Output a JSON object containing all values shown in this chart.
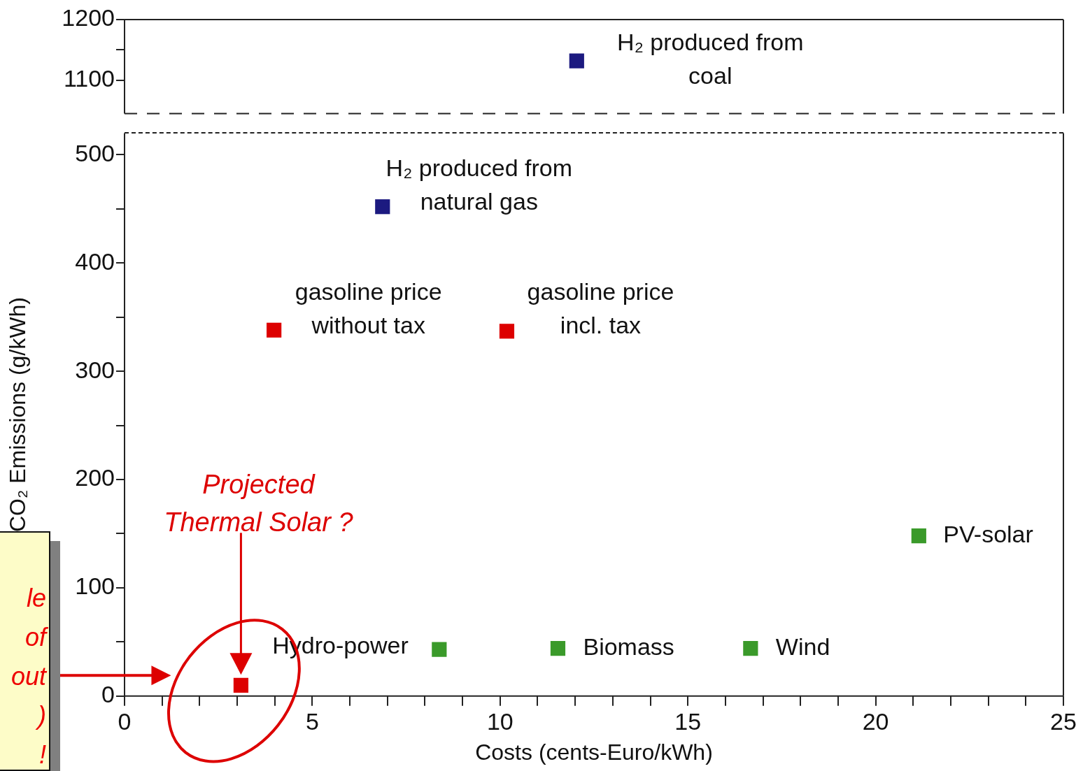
{
  "chart_data": [
    {
      "type": "scatter",
      "xlim": [
        0,
        25
      ],
      "ylim": [
        1045,
        1200
      ],
      "yticks": [
        1100,
        {
          "value": 1150,
          "label": null
        },
        1200
      ],
      "tick_labels": "y",
      "marker": "square",
      "grid": false,
      "legend": false,
      "series": [
        {
          "name": "H₂ produced from coal",
          "color": "#1c1a80",
          "x": [
            12.04
          ],
          "values": [
            1132
          ]
        }
      ]
    },
    {
      "type": "scatter",
      "xlabel": "Costs (cents-Euro/kWh)",
      "ylabel": "CO₂ Emissions (g/kWh)",
      "xlim": [
        0,
        25
      ],
      "ylim": [
        0,
        520
      ],
      "xticks": [
        0,
        {
          "value": 1,
          "label": null
        },
        {
          "value": 2,
          "label": null
        },
        {
          "value": 3,
          "label": null
        },
        {
          "value": 4,
          "label": null
        },
        5,
        {
          "value": 6,
          "label": null
        },
        {
          "value": 7,
          "label": null
        },
        {
          "value": 8,
          "label": null
        },
        {
          "value": 9,
          "label": null
        },
        10,
        {
          "value": 11,
          "label": null
        },
        {
          "value": 12,
          "label": null
        },
        {
          "value": 13,
          "label": null
        },
        {
          "value": 14,
          "label": null
        },
        15,
        {
          "value": 16,
          "label": null
        },
        {
          "value": 17,
          "label": null
        },
        {
          "value": 18,
          "label": null
        },
        {
          "value": 19,
          "label": null
        },
        20,
        {
          "value": 21,
          "label": null
        },
        {
          "value": 22,
          "label": null
        },
        {
          "value": 23,
          "label": null
        },
        {
          "value": 24,
          "label": null
        },
        25
      ],
      "yticks": [
        0,
        {
          "value": 50,
          "label": null
        },
        100,
        {
          "value": 150,
          "label": null
        },
        200,
        {
          "value": 250,
          "label": null
        },
        300,
        {
          "value": 350,
          "label": null
        },
        400,
        {
          "value": 450,
          "label": null
        },
        500
      ],
      "marker": "square",
      "grid": false,
      "legend": false,
      "series": [
        {
          "name": "H₂ produced from natural gas",
          "color": "#1c1a80",
          "x": [
            6.87
          ],
          "values": [
            452
          ]
        },
        {
          "name": "gasoline price without tax",
          "color": "#dd0000",
          "x": [
            3.98
          ],
          "values": [
            338
          ]
        },
        {
          "name": "gasoline price incl. tax",
          "color": "#dd0000",
          "x": [
            10.18
          ],
          "values": [
            337
          ]
        },
        {
          "name": "Hydro-power",
          "color": "#3a9a2a",
          "x": [
            8.38
          ],
          "values": [
            43
          ]
        },
        {
          "name": "Biomass",
          "color": "#3a9a2a",
          "x": [
            11.54
          ],
          "values": [
            44
          ]
        },
        {
          "name": "Wind",
          "color": "#3a9a2a",
          "x": [
            16.67
          ],
          "values": [
            44
          ]
        },
        {
          "name": "PV-solar",
          "color": "#3a9a2a",
          "x": [
            21.15
          ],
          "values": [
            148
          ]
        },
        {
          "color": "#dd0000",
          "x": [
            3.1
          ],
          "values": [
            10
          ]
        }
      ],
      "annotations": [
        "Projected Thermal Solar ?",
        "le of out ) !"
      ]
    }
  ]
}
